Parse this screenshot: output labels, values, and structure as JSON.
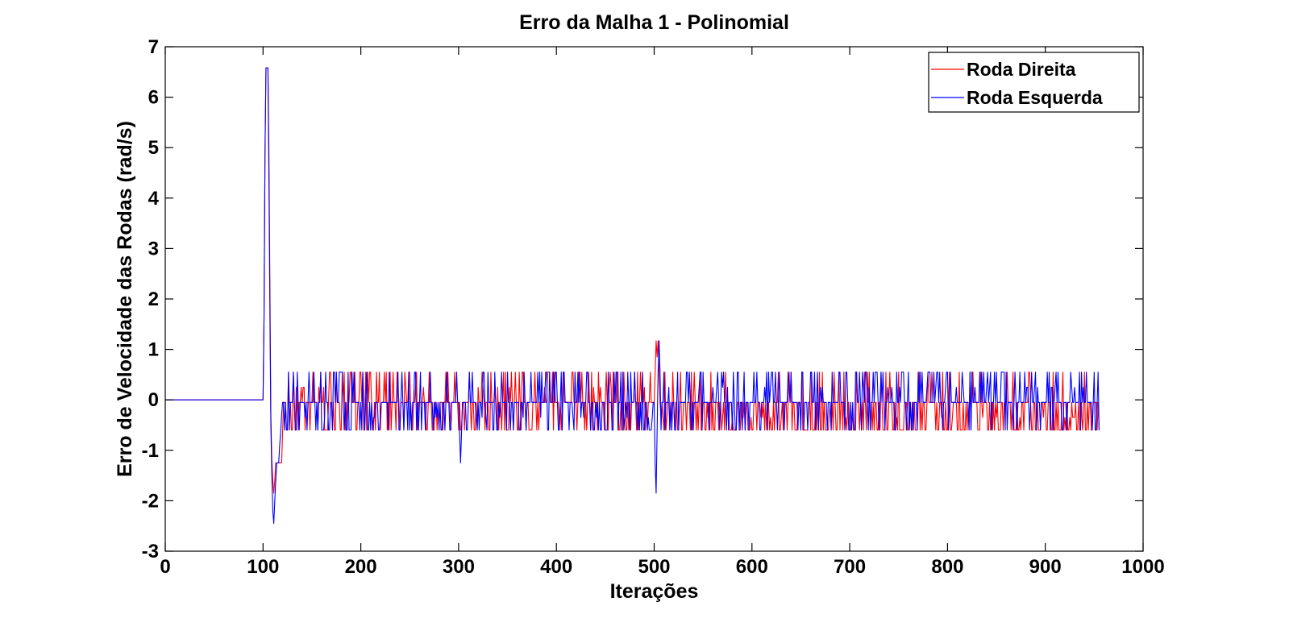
{
  "chart_data": {
    "type": "line",
    "title": "Erro da Malha 1 - Polinomial",
    "xlabel": "Iterações",
    "ylabel": "Erro de Velocidade das Rodas (rad/s)",
    "xlim": [
      0,
      1000
    ],
    "ylim": [
      -3,
      7
    ],
    "xticks": [
      "0",
      "100",
      "200",
      "300",
      "400",
      "500",
      "600",
      "700",
      "800",
      "900",
      "1000"
    ],
    "yticks": [
      "-3",
      "-2",
      "-1",
      "0",
      "1",
      "2",
      "3",
      "4",
      "5",
      "6",
      "7"
    ],
    "grid": false,
    "legend_position": "top-right",
    "series": [
      {
        "name": "Roda Direita",
        "color": "#ff0000",
        "description": "step at iteration 100 to ~6.6, drop to ~-1.9, then oscillation between about -0.65 and 0.55; small spike to ~1.17 near iteration 502",
        "key_points": [
          [
            0,
            0
          ],
          [
            100,
            0
          ],
          [
            102,
            6.58
          ],
          [
            106,
            6.58
          ],
          [
            108,
            -0.3
          ],
          [
            111,
            -1.85
          ],
          [
            115,
            -1.25
          ],
          [
            120,
            -1.25
          ],
          [
            122,
            -0.05
          ],
          [
            500,
            -0.05
          ],
          [
            502,
            1.17
          ],
          [
            505,
            0.55
          ],
          [
            508,
            -0.55
          ],
          [
            955,
            -0.6
          ]
        ]
      },
      {
        "name": "Roda Esquerda",
        "color": "#0000ff",
        "description": "step at iteration 100 to ~6.6, drop to ~-2.45, then oscillation between about -0.65 and 0.55; dips to ~-1.25 near 302 and ~-1.85 near 502",
        "key_points": [
          [
            0,
            0
          ],
          [
            100,
            0
          ],
          [
            102,
            6.58
          ],
          [
            106,
            6.58
          ],
          [
            108,
            -0.5
          ],
          [
            111,
            -2.45
          ],
          [
            116,
            -1.25
          ],
          [
            122,
            -0.05
          ],
          [
            302,
            -1.25
          ],
          [
            304,
            -0.05
          ],
          [
            500,
            -0.05
          ],
          [
            502,
            -1.85
          ],
          [
            505,
            0.55
          ],
          [
            955,
            0.55
          ]
        ]
      }
    ]
  }
}
